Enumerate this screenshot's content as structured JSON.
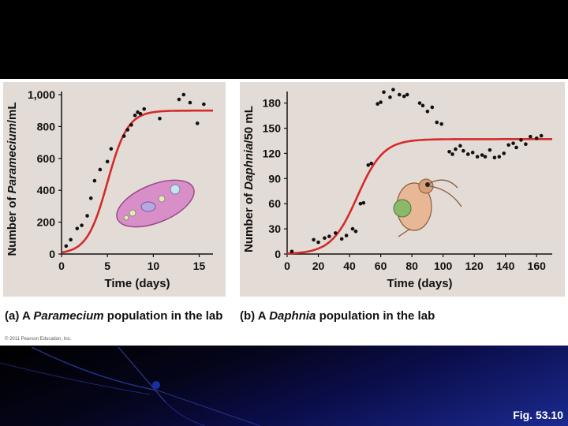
{
  "caption_a": {
    "prefix": "(a) A ",
    "species": "Paramecium",
    "suffix": " population in the lab"
  },
  "caption_b": {
    "prefix": "(b) A ",
    "species": "Daphnia",
    "suffix": " population in the lab"
  },
  "copyright": "© 2011 Pearson Education, Inc.",
  "fig_label": "Fig. 53.10",
  "colors": {
    "curve": "#d42a2a",
    "plot_bg": "#e3dcd6",
    "points": "#111111"
  },
  "chart_data": [
    {
      "type": "scatter",
      "title": "(a) A Paramecium population in the lab",
      "xlabel": "Time (days)",
      "ylabel_parts": [
        "Number of ",
        "Paramecium",
        "/mL"
      ],
      "xlim": [
        0,
        16.5
      ],
      "ylim": [
        0,
        1000
      ],
      "xticks": [
        0,
        5,
        10,
        15
      ],
      "xtick_labels": [
        "0",
        "5",
        "10",
        "15"
      ],
      "yticks": [
        0,
        200,
        400,
        600,
        800,
        1000
      ],
      "ytick_labels": [
        "0",
        "200",
        "400",
        "600",
        "800",
        "1,000"
      ],
      "points": [
        [
          0.5,
          50
        ],
        [
          1,
          90
        ],
        [
          1.7,
          160
        ],
        [
          2.2,
          180
        ],
        [
          2.8,
          240
        ],
        [
          3.2,
          350
        ],
        [
          3.6,
          460
        ],
        [
          4.2,
          530
        ],
        [
          5,
          580
        ],
        [
          5.4,
          660
        ],
        [
          6.8,
          740
        ],
        [
          7.2,
          780
        ],
        [
          7.6,
          810
        ],
        [
          8,
          870
        ],
        [
          8.3,
          890
        ],
        [
          8.6,
          880
        ],
        [
          9,
          910
        ],
        [
          10.7,
          850
        ],
        [
          12.8,
          970
        ],
        [
          13.3,
          1000
        ],
        [
          14,
          950
        ],
        [
          14.8,
          820
        ],
        [
          15.5,
          940
        ]
      ],
      "curve": {
        "model": "logistic",
        "K": 900,
        "r": 0.9,
        "midpoint": 5
      }
    },
    {
      "type": "scatter",
      "title": "(b) A Daphnia population in the lab",
      "xlabel": "Time (days)",
      "ylabel_parts": [
        "Number of ",
        "Daphnia",
        "/50 mL"
      ],
      "xlim": [
        0,
        170
      ],
      "ylim": [
        0,
        190
      ],
      "xticks": [
        0,
        20,
        40,
        60,
        80,
        100,
        120,
        140,
        160
      ],
      "xtick_labels": [
        "0",
        "20",
        "40",
        "60",
        "80",
        "100",
        "120",
        "140",
        "160"
      ],
      "yticks": [
        0,
        30,
        60,
        90,
        120,
        150,
        180
      ],
      "ytick_labels": [
        "0",
        "30",
        "60",
        "90",
        "120",
        "150",
        "180"
      ],
      "points": [
        [
          3,
          3
        ],
        [
          17,
          17
        ],
        [
          20,
          14
        ],
        [
          24,
          19
        ],
        [
          27,
          21
        ],
        [
          31,
          25
        ],
        [
          35,
          18
        ],
        [
          38,
          22
        ],
        [
          42,
          30
        ],
        [
          44,
          27
        ],
        [
          47,
          60
        ],
        [
          49,
          61
        ],
        [
          52,
          106
        ],
        [
          54,
          108
        ],
        [
          58,
          179
        ],
        [
          60,
          181
        ],
        [
          62,
          193
        ],
        [
          66,
          187
        ],
        [
          68,
          196
        ],
        [
          72,
          190
        ],
        [
          75,
          188
        ],
        [
          77,
          190
        ],
        [
          85,
          180
        ],
        [
          87,
          177
        ],
        [
          90,
          170
        ],
        [
          93,
          175
        ],
        [
          96,
          157
        ],
        [
          99,
          155
        ],
        [
          104,
          122
        ],
        [
          106,
          119
        ],
        [
          108,
          125
        ],
        [
          111,
          129
        ],
        [
          113,
          123
        ],
        [
          116,
          119
        ],
        [
          119,
          121
        ],
        [
          122,
          116
        ],
        [
          125,
          118
        ],
        [
          127,
          116
        ],
        [
          130,
          124
        ],
        [
          133,
          115
        ],
        [
          136,
          116
        ],
        [
          139,
          120
        ],
        [
          142,
          130
        ],
        [
          145,
          132
        ],
        [
          147,
          127
        ],
        [
          150,
          136
        ],
        [
          153,
          131
        ],
        [
          156,
          140
        ],
        [
          160,
          138
        ],
        [
          163,
          141
        ]
      ],
      "curve": {
        "model": "logistic",
        "K": 137,
        "r": 0.12,
        "midpoint": 45
      }
    }
  ]
}
